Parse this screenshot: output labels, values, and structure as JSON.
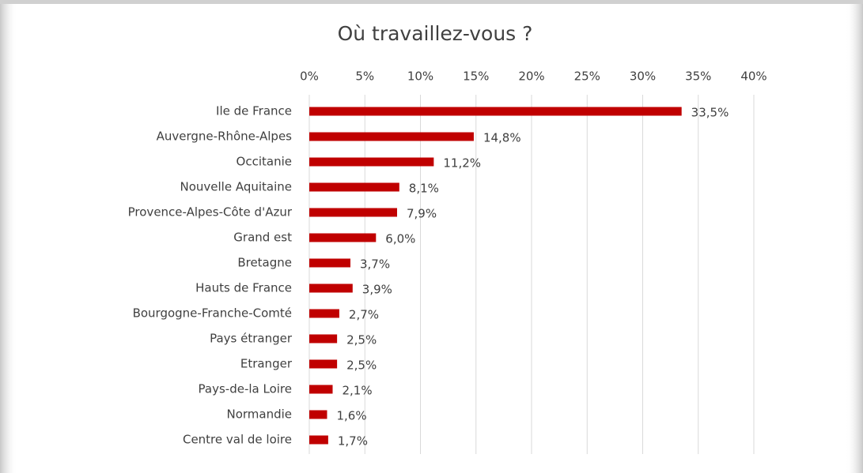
{
  "chart_data": {
    "type": "hbar",
    "title": "Où travaillez-vous ?",
    "categories": [
      "Ile de France",
      "Auvergne-Rhône-Alpes",
      "Occitanie",
      "Nouvelle Aquitaine",
      "Provence-Alpes-Côte d'Azur",
      "Grand est",
      "Bretagne",
      "Hauts de France",
      "Bourgogne-Franche-Comté",
      "Pays étranger",
      "Etranger",
      "Pays-de-la Loire",
      "Normandie",
      "Centre val de loire"
    ],
    "values": [
      33.5,
      14.8,
      11.2,
      8.1,
      7.9,
      6.0,
      3.7,
      3.9,
      2.7,
      2.5,
      2.5,
      2.1,
      1.6,
      1.7
    ],
    "value_labels": [
      "33,5%",
      "14,8%",
      "11,2%",
      "8,1%",
      "7,9%",
      "6,0%",
      "3,7%",
      "3,9%",
      "2,7%",
      "2,5%",
      "2,5%",
      "2,1%",
      "1,6%",
      "1,7%"
    ],
    "color": "#c00000",
    "xlim": [
      0,
      40
    ],
    "xticks": [
      {
        "value": 0,
        "label": "0%"
      },
      {
        "value": 5,
        "label": "5%"
      },
      {
        "value": 10,
        "label": "10%"
      },
      {
        "value": 15,
        "label": "15%"
      },
      {
        "value": 20,
        "label": "20%"
      },
      {
        "value": 25,
        "label": "25%"
      },
      {
        "value": 30,
        "label": "30%"
      },
      {
        "value": 35,
        "label": "35%"
      },
      {
        "value": 40,
        "label": "40%"
      }
    ],
    "grid": true
  }
}
